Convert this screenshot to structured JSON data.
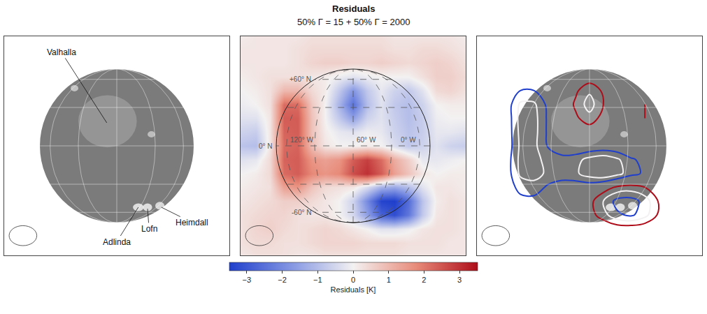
{
  "chart_data": {
    "type": "heatmap",
    "title": "Residuals",
    "subtitle": "50% Γ = 15 + 50% Γ = 2000",
    "x": [
      -1.44,
      -1.26,
      -1.08,
      -0.9,
      -0.72,
      -0.54,
      -0.36,
      -0.18,
      0,
      0.18,
      0.36,
      0.54,
      0.72,
      0.9,
      1.08,
      1.26,
      1.44
    ],
    "y": [
      -1.44,
      -1.26,
      -1.08,
      -0.9,
      -0.72,
      -0.54,
      -0.36,
      -0.18,
      0,
      0.18,
      0.36,
      0.54,
      0.72,
      0.9,
      1.08,
      1.26,
      1.44
    ],
    "z": [
      [
        0.2,
        0.3,
        0.3,
        0.3,
        0.2,
        0.2,
        0.3,
        0.3,
        0.3,
        0.3,
        0.3,
        0.3,
        0.2,
        0.2,
        0.2,
        0.2,
        0.2
      ],
      [
        0.3,
        0.4,
        0.4,
        0.3,
        0.3,
        0.4,
        0.5,
        0.5,
        0.5,
        0.4,
        0.4,
        0.4,
        0.3,
        0.3,
        0.3,
        0.2,
        0.2
      ],
      [
        0.3,
        0.5,
        0.6,
        0.4,
        0.3,
        0.4,
        0.5,
        0.4,
        0.2,
        0.0,
        -0.3,
        -0.3,
        -0.1,
        0.2,
        0.3,
        0.3,
        0.2
      ],
      [
        0.3,
        0.4,
        0.5,
        0.5,
        0.3,
        0.2,
        0.2,
        0.0,
        -0.5,
        -1.6,
        -2.8,
        -3.2,
        -2.4,
        -0.8,
        0.2,
        0.3,
        0.2
      ],
      [
        0.2,
        0.3,
        0.4,
        0.6,
        0.6,
        0.4,
        0.2,
        0.0,
        -0.6,
        -2.0,
        -3.4,
        -3.5,
        -2.6,
        -0.9,
        0.1,
        0.3,
        0.2
      ],
      [
        0.1,
        0.2,
        0.3,
        1.4,
        1.6,
        0.8,
        0.4,
        0.3,
        0.2,
        -0.4,
        -1.2,
        -1.4,
        -1.0,
        -0.3,
        0.2,
        0.2,
        0.1
      ],
      [
        0.0,
        0.1,
        0.4,
        2.2,
        2.4,
        1.8,
        1.6,
        1.8,
        2.6,
        3.0,
        2.4,
        1.4,
        0.8,
        0.2,
        0.0,
        0.1,
        0.1
      ],
      [
        -0.3,
        -0.2,
        0.4,
        2.3,
        2.4,
        1.6,
        1.4,
        1.6,
        2.4,
        2.8,
        2.2,
        1.2,
        0.6,
        -0.2,
        -0.2,
        -0.1,
        0.0
      ],
      [
        -0.9,
        -1.0,
        0.2,
        2.2,
        2.3,
        0.9,
        0.2,
        0.0,
        0.0,
        0.1,
        0.0,
        -0.4,
        -0.8,
        -0.6,
        -0.3,
        -0.6,
        -0.7
      ],
      [
        -0.6,
        -0.7,
        0.2,
        2.3,
        2.4,
        0.8,
        0.1,
        -0.2,
        -0.3,
        -0.1,
        -0.2,
        -0.6,
        -0.9,
        -0.7,
        -0.2,
        -0.2,
        -0.3
      ],
      [
        -0.3,
        -0.3,
        0.2,
        2.4,
        2.4,
        0.8,
        0.0,
        -0.8,
        -1.6,
        -0.6,
        -0.3,
        -0.7,
        -1.0,
        -0.7,
        -0.1,
        0.0,
        0.0
      ],
      [
        -0.1,
        0.0,
        0.3,
        2.2,
        2.2,
        0.7,
        0.0,
        -1.2,
        -2.5,
        -1.0,
        -0.3,
        -0.8,
        -1.0,
        -0.6,
        0.0,
        0.1,
        0.1
      ],
      [
        0.0,
        0.1,
        0.3,
        1.0,
        1.0,
        0.4,
        0.1,
        -0.8,
        -1.8,
        -0.8,
        -0.2,
        -0.6,
        -0.8,
        -0.3,
        0.4,
        0.5,
        0.3
      ],
      [
        0.1,
        0.2,
        0.3,
        0.3,
        0.3,
        0.2,
        0.1,
        -0.1,
        -0.3,
        -0.1,
        0.0,
        0.0,
        0.0,
        0.3,
        0.6,
        0.6,
        0.4
      ],
      [
        0.2,
        0.2,
        0.2,
        0.2,
        0.3,
        0.5,
        0.6,
        0.6,
        0.5,
        0.5,
        0.6,
        0.5,
        0.4,
        0.5,
        0.6,
        0.5,
        0.3
      ],
      [
        0.2,
        0.2,
        0.2,
        0.2,
        0.3,
        0.4,
        0.4,
        0.4,
        0.4,
        0.4,
        0.4,
        0.3,
        0.3,
        0.4,
        0.4,
        0.3,
        0.2
      ],
      [
        0.1,
        0.2,
        0.2,
        0.2,
        0.2,
        0.3,
        0.3,
        0.3,
        0.3,
        0.3,
        0.3,
        0.2,
        0.2,
        0.2,
        0.2,
        0.2,
        0.1
      ]
    ],
    "xlim": [
      -1.464,
      1.464
    ],
    "ylim": [
      -1.427,
      1.427
    ],
    "tick_labels": false,
    "grid": false,
    "colorbar": {
      "title": "Residuals [K]",
      "range": [
        -3.5,
        3.5
      ],
      "ticks": [
        -3,
        -2,
        -1,
        0,
        1,
        2,
        3
      ]
    },
    "contour_levels": [
      -3,
      -2,
      -1,
      1,
      2,
      3
    ],
    "features": [
      "Valhalla",
      "Adlinda",
      "Lofn",
      "Heimdall"
    ],
    "graticule": {
      "central_meridian": 60,
      "parallels": [
        -60,
        -30,
        0,
        30,
        60
      ],
      "meridians": [
        0,
        30,
        60,
        90,
        120
      ],
      "labels": [
        {
          "lat": 60,
          "text": "+60° N"
        },
        {
          "lat": 0,
          "text": "0° N"
        },
        {
          "lat": -60,
          "text": "-60° N"
        },
        {
          "lon": 120,
          "text": "120° W"
        },
        {
          "lon": 60,
          "text": "60° W"
        },
        {
          "lon": 0,
          "text": "0° W"
        }
      ]
    }
  }
}
